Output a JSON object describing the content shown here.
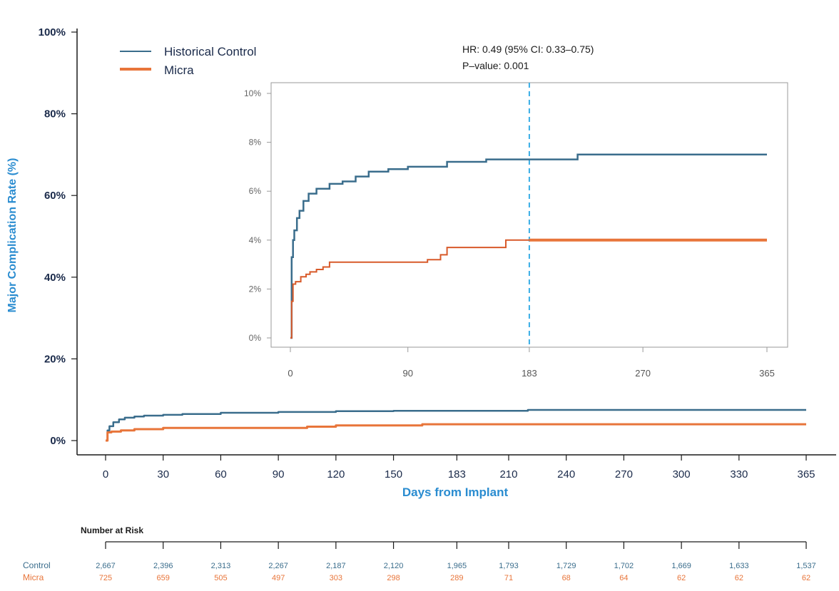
{
  "chart_data": [
    {
      "type": "line",
      "title": "",
      "xlabel": "Days from Implant",
      "ylabel": "Major Complication Rate (%)",
      "xlim": [
        0,
        365
      ],
      "ylim": [
        0,
        100
      ],
      "x_ticks": [
        "0",
        "30",
        "60",
        "90",
        "120",
        "150",
        "183",
        "210",
        "240",
        "270",
        "300",
        "330",
        "365"
      ],
      "y_ticks": [
        "0%",
        "20%",
        "40%",
        "60%",
        "80%",
        "100%"
      ],
      "legend": {
        "placement": "top-left",
        "entries": [
          "Historical Control",
          "Micra"
        ]
      },
      "series": [
        {
          "name": "Historical Control",
          "color": "#3a6d8c",
          "x": [
            0,
            1,
            2,
            4,
            7,
            10,
            15,
            20,
            30,
            40,
            60,
            90,
            120,
            150,
            183,
            220,
            300,
            365
          ],
          "y": [
            0,
            2.5,
            3.5,
            4.5,
            5.2,
            5.6,
            5.9,
            6.1,
            6.3,
            6.5,
            6.8,
            7.0,
            7.2,
            7.3,
            7.3,
            7.5,
            7.5,
            7.5
          ]
        },
        {
          "name": "Micra",
          "color": "#e8753a",
          "x": [
            0,
            1,
            3,
            8,
            15,
            30,
            60,
            90,
            105,
            120,
            150,
            165,
            183,
            365
          ],
          "y": [
            0,
            2.0,
            2.2,
            2.5,
            2.8,
            3.1,
            3.1,
            3.1,
            3.4,
            3.7,
            3.7,
            4.0,
            4.0,
            4.0
          ]
        }
      ],
      "risk_table": {
        "title": "Number at Risk",
        "rows": [
          {
            "label": "Control",
            "color": "#3a6d8c",
            "values": [
              "2,667",
              "2,396",
              "2,313",
              "2,267",
              "2,187",
              "2,120",
              "1,965",
              "1,793",
              "1,729",
              "1,702",
              "1,669",
              "1,633",
              "1,537"
            ]
          },
          {
            "label": "Micra",
            "color": "#e8753a",
            "values": [
              "725",
              "659",
              "505",
              "497",
              "303",
              "298",
              "289",
              "71",
              "68",
              "64",
              "62",
              "62",
              "62"
            ]
          }
        ]
      }
    },
    {
      "type": "line",
      "title": "",
      "xlabel": "",
      "ylabel": "",
      "xlim": [
        0,
        365
      ],
      "ylim": [
        0,
        10
      ],
      "x_ticks": [
        "0",
        "90",
        "183",
        "270",
        "365"
      ],
      "y_ticks": [
        "0%",
        "2%",
        "4%",
        "6%",
        "8%",
        "10%"
      ],
      "reference_line_x": 183,
      "annotation": [
        "HR: 0.49 (95% CI: 0.33–0.75)",
        "P–value: 0.001"
      ],
      "series": [
        {
          "name": "Historical Control",
          "color": "#3a6d8c",
          "x": [
            0,
            1,
            2,
            3,
            5,
            7,
            10,
            14,
            20,
            30,
            40,
            50,
            60,
            75,
            90,
            120,
            150,
            183,
            220,
            300,
            365
          ],
          "y": [
            0,
            3.3,
            4.0,
            4.4,
            4.9,
            5.2,
            5.6,
            5.9,
            6.1,
            6.3,
            6.4,
            6.6,
            6.8,
            6.9,
            7.0,
            7.2,
            7.3,
            7.3,
            7.5,
            7.5,
            7.5
          ]
        },
        {
          "name": "Micra",
          "color": "#e8753a",
          "x": [
            0,
            1,
            2,
            4,
            8,
            12,
            15,
            20,
            25,
            30,
            90,
            105,
            115,
            120,
            160,
            165,
            183,
            365
          ],
          "y": [
            0,
            1.5,
            2.2,
            2.3,
            2.5,
            2.6,
            2.7,
            2.8,
            2.9,
            3.1,
            3.1,
            3.2,
            3.4,
            3.7,
            3.7,
            4.0,
            4.0,
            4.0
          ]
        }
      ]
    }
  ]
}
